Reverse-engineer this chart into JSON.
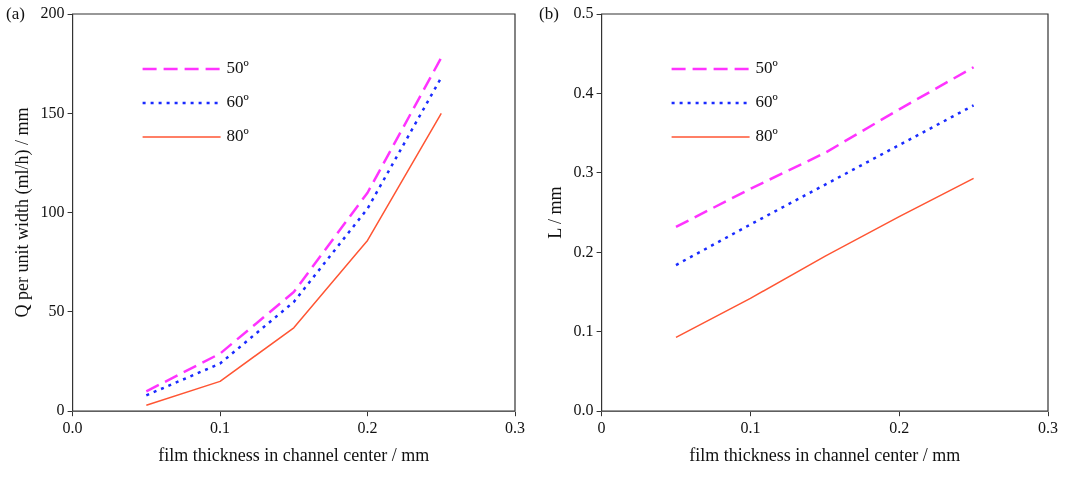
{
  "chart_data": [
    {
      "type": "line",
      "title": "(a)",
      "xlabel": "film thickness in channel center / mm",
      "ylabel": "Q per unit width (ml/h) / mm",
      "x": [
        0.05,
        0.1,
        0.15,
        0.2,
        0.25
      ],
      "series": [
        {
          "name": "50º",
          "color": "#ff33ff",
          "line_style": "dashed",
          "values": [
            10,
            29,
            60,
            110,
            178
          ]
        },
        {
          "name": "60º",
          "color": "#1a2bff",
          "line_style": "dotted",
          "values": [
            8,
            24,
            55,
            102,
            168
          ]
        },
        {
          "name": "80º",
          "color": "#ff5533",
          "line_style": "solid",
          "values": [
            3,
            15,
            42,
            86,
            150
          ]
        }
      ],
      "xlim": [
        0,
        0.3
      ],
      "xticks": [
        {
          "value": 0,
          "label": "0.0"
        },
        0.1,
        0.2,
        0.3
      ],
      "ylim": [
        0,
        200
      ],
      "yticks": [
        0,
        50,
        100,
        150,
        200
      ],
      "grid": false,
      "legend": "top left",
      "marker": "none"
    },
    {
      "type": "line",
      "title": "(b)",
      "xlabel": "film thickness in channel center / mm",
      "ylabel": "L / mm",
      "x": [
        0.05,
        0.1,
        0.15,
        0.2,
        0.25
      ],
      "series": [
        {
          "name": "50º",
          "color": "#ff33ff",
          "line_style": "dashed",
          "values": [
            0.232,
            0.28,
            0.325,
            0.38,
            0.433
          ]
        },
        {
          "name": "60º",
          "color": "#1a2bff",
          "line_style": "dotted",
          "values": [
            0.184,
            0.235,
            0.285,
            0.335,
            0.385
          ]
        },
        {
          "name": "80º",
          "color": "#ff5533",
          "line_style": "solid",
          "values": [
            0.093,
            0.142,
            0.195,
            0.245,
            0.293
          ]
        }
      ],
      "xlim": [
        0,
        0.3
      ],
      "xticks": [
        0,
        0.1,
        0.2,
        0.3
      ],
      "ylim": [
        0,
        0.5
      ],
      "yticks": [
        {
          "value": 0,
          "label": "0.0"
        },
        0.1,
        0.2,
        0.3,
        0.4,
        0.5
      ],
      "grid": false,
      "legend": "top left",
      "marker": "none"
    }
  ]
}
